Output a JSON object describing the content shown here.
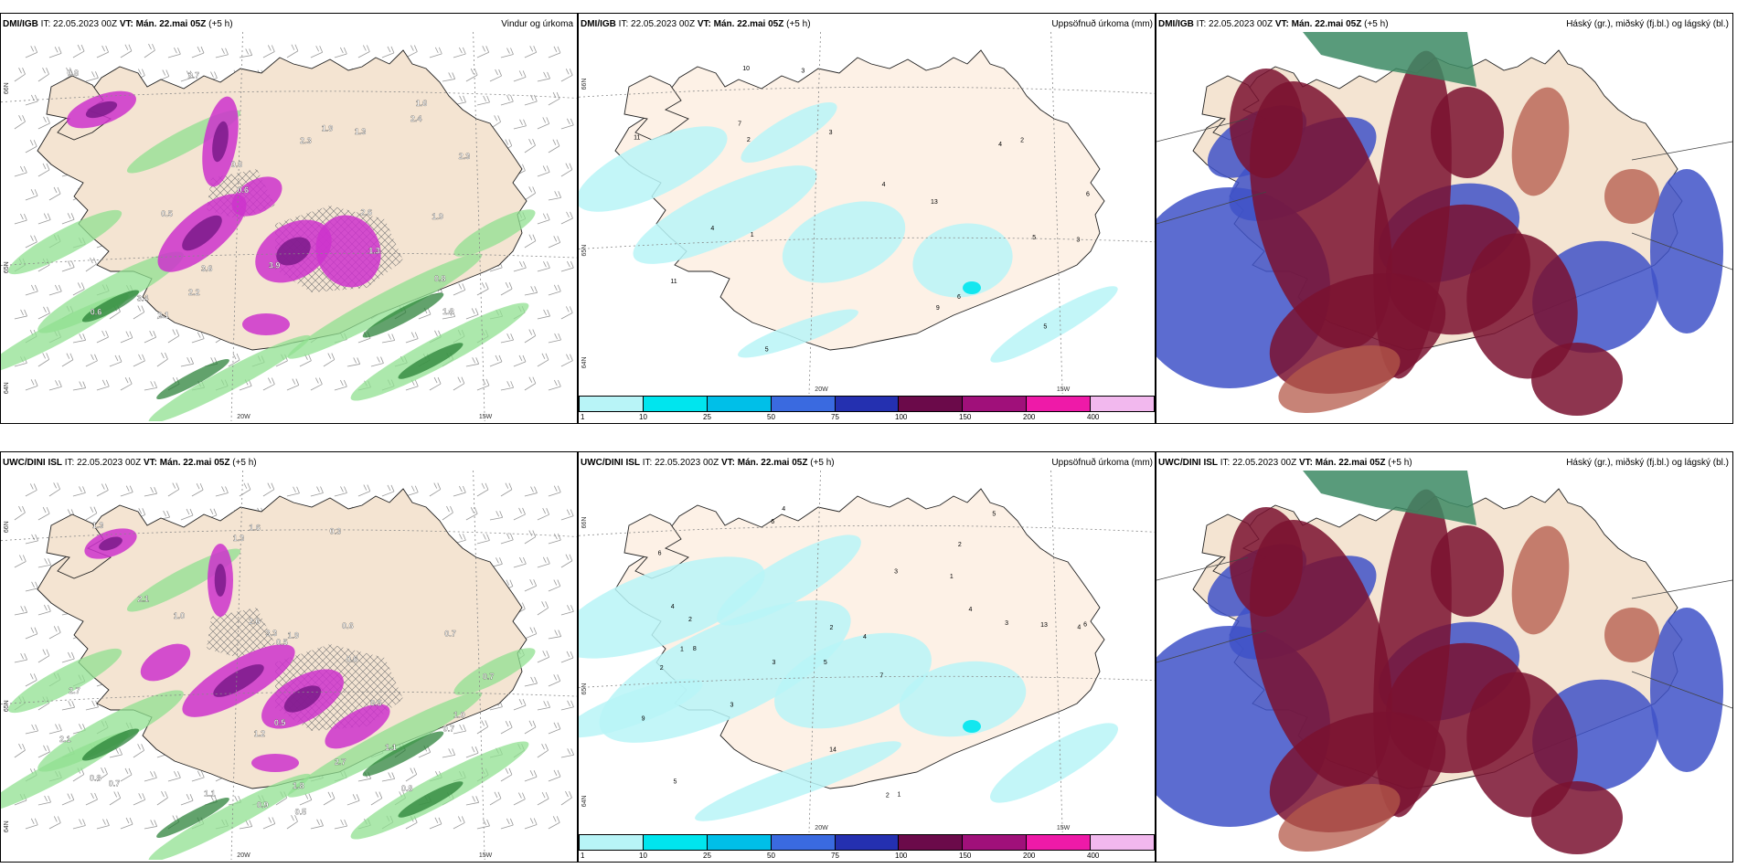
{
  "headers": {
    "top": {
      "model": "DMI/IGB",
      "it": "IT: 22.05.2023 00Z",
      "vt_label": "VT:",
      "vt": "Mán. 22.mai 05Z",
      "lead": "(+5 h)"
    },
    "bottom": {
      "model": "UWC/DINI ISL",
      "it": "IT: 22.05.2023 00Z",
      "vt_label": "VT:",
      "vt": "Mán. 22.mai 05Z",
      "lead": "(+5 h)"
    }
  },
  "titles": {
    "wind": "Vindur og úrkoma",
    "precip": "Uppsöfnuð úrkoma (mm)",
    "cloud": "Háský (gr.), miðský (fj.bl.) og lágský (bl.)"
  },
  "axes": {
    "lat_labels": [
      "66N",
      "65N",
      "64N"
    ],
    "lon_labels": [
      "20W",
      "15W"
    ]
  },
  "colorbar": {
    "labels": [
      "1",
      "10",
      "25",
      "50",
      "75",
      "100",
      "150",
      "200",
      "400"
    ],
    "colors": [
      "#b8f4f7",
      "#00e5ee",
      "#00bfe8",
      "#3a6ae0",
      "#2430b0",
      "#6b0a4a",
      "#a0107a",
      "#ee1aa8",
      "#f2b8ee"
    ]
  },
  "colors": {
    "land": "#f4e4d2",
    "landAlt": "#fdf1e6",
    "sea": "#ffffff",
    "precipGreen": "#90e090",
    "precipGreenDark": "#1f7a2e",
    "precipMagenta": "#cc33cc",
    "precipPurple": "#7a1a8a",
    "cyanPrecip": "#b8f4f7",
    "highCloud": "#3c8a64",
    "midCloud": "#7a1230",
    "lowCloud": "#3f52c8"
  },
  "wind_labels_top": [
    "0.6",
    "1.3",
    "1.9",
    "2.6",
    "1.8",
    "2.4",
    "2.7",
    "3.9",
    "2.3",
    "2.1",
    "1.9",
    "3.4",
    "1.6",
    "3.6",
    "0.8",
    "0.6",
    "0.5",
    "0.6",
    "2.2",
    "2.3",
    "1.3",
    "0.8"
  ],
  "wind_labels_bottom": [
    "0.3",
    "1.3",
    "3.3",
    "2.1",
    "1.2",
    "1.1",
    "0.5",
    "1.0",
    "0.8",
    "1.3",
    "2.1",
    "2.7",
    "2.6",
    "1.8",
    "1.9",
    "0.7",
    "0.6",
    "1.0",
    "0.9",
    "0.7",
    "0.5",
    "0.8",
    "0.5",
    "2.7",
    "1.6",
    "0.7",
    "0.6",
    "1.1",
    "0.5",
    "0.7"
  ],
  "precip_labels_top": [
    "3",
    "9",
    "4",
    "3",
    "7",
    "5",
    "4",
    "5",
    "6",
    "13",
    "11",
    "10",
    "11",
    "5",
    "3",
    "4",
    "2",
    "6",
    "2",
    "1"
  ],
  "precip_labels_bottom": [
    "4",
    "2",
    "4",
    "5",
    "7",
    "8",
    "6",
    "1",
    "2",
    "3",
    "4",
    "5",
    "6",
    "3",
    "2",
    "1",
    "14",
    "5",
    "4",
    "3",
    "2",
    "1",
    "6",
    "13",
    "9",
    "4",
    "2",
    "3"
  ]
}
